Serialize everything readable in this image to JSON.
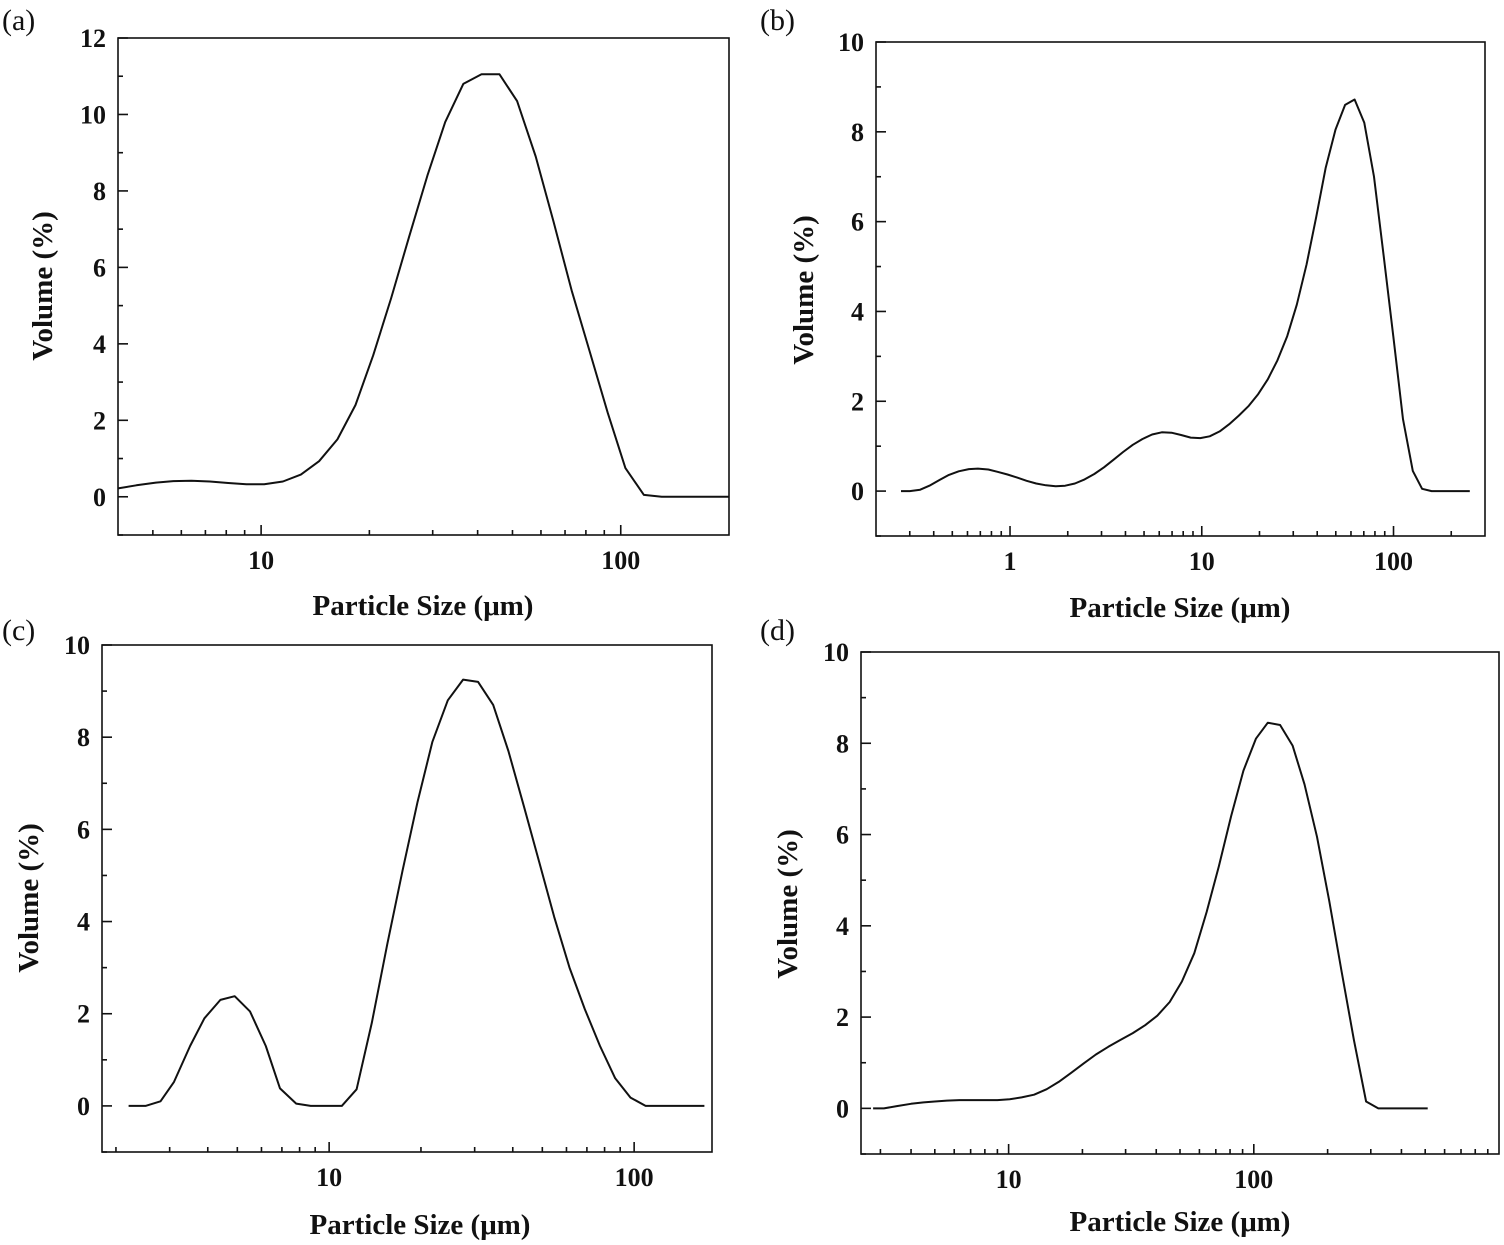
{
  "chart_data": [
    {
      "panel": "(a)",
      "type": "line",
      "xscale": "log",
      "xlim": [
        4,
        200
      ],
      "ylim": [
        -1,
        12
      ],
      "xticks": [
        10,
        100
      ],
      "xtick_labels": [
        "10",
        "100"
      ],
      "yticks": [
        0,
        2,
        4,
        6,
        8,
        10,
        12
      ],
      "ytick_labels": [
        "0",
        "2",
        "4",
        "6",
        "8",
        "10",
        "12"
      ],
      "xlabel": "Particle Size (μm)",
      "ylabel": "Volume (%)",
      "series": [
        {
          "name": "a",
          "x": [
            4,
            4.5,
            5.1,
            5.7,
            6.4,
            7.2,
            8.1,
            9.1,
            10.2,
            11.5,
            12.9,
            14.5,
            16.3,
            18.3,
            20.5,
            23.0,
            25.8,
            29.0,
            32.5,
            36.5,
            41.0,
            46.0,
            51.5,
            58.0,
            65.0,
            73.0,
            82.0,
            92.0,
            103.0,
            116.0,
            130.0,
            146.0,
            164.0,
            184.0,
            200.0
          ],
          "y": [
            0.22,
            0.3,
            0.37,
            0.41,
            0.42,
            0.4,
            0.36,
            0.33,
            0.33,
            0.4,
            0.58,
            0.93,
            1.5,
            2.4,
            3.7,
            5.2,
            6.8,
            8.4,
            9.8,
            10.8,
            11.05,
            11.05,
            10.35,
            8.9,
            7.2,
            5.4,
            3.8,
            2.2,
            0.75,
            0.05,
            0.0,
            0.0,
            0.0,
            0.0,
            0.0
          ]
        }
      ]
    },
    {
      "panel": "(b)",
      "type": "line",
      "xscale": "log",
      "xlim": [
        0.2,
        300
      ],
      "ylim": [
        -1,
        10
      ],
      "xticks": [
        1,
        10,
        100
      ],
      "xtick_labels": [
        "1",
        "10",
        "100"
      ],
      "yticks": [
        0,
        2,
        4,
        6,
        8,
        10
      ],
      "ytick_labels": [
        "0",
        "2",
        "4",
        "6",
        "8",
        "10"
      ],
      "xlabel": "Particle Size (μm)",
      "ylabel": "Volume (%)",
      "series": [
        {
          "name": "b",
          "x": [
            0.27,
            0.3,
            0.34,
            0.38,
            0.43,
            0.48,
            0.54,
            0.61,
            0.68,
            0.77,
            0.86,
            0.97,
            1.09,
            1.22,
            1.37,
            1.54,
            1.73,
            1.94,
            2.18,
            2.45,
            2.75,
            3.09,
            3.47,
            3.89,
            4.37,
            4.91,
            5.51,
            6.19,
            6.95,
            7.8,
            8.76,
            9.83,
            11.0,
            12.4,
            13.9,
            15.6,
            17.6,
            19.7,
            22.1,
            24.8,
            27.9,
            31.3,
            35.2,
            39.5,
            44.3,
            49.8,
            55.9,
            62.7,
            70.4,
            79.1,
            88.8,
            99.7,
            112,
            126,
            141,
            158,
            178,
            200,
            224,
            250
          ],
          "y": [
            0.0,
            0.0,
            0.03,
            0.12,
            0.25,
            0.36,
            0.44,
            0.49,
            0.5,
            0.48,
            0.43,
            0.37,
            0.3,
            0.23,
            0.17,
            0.13,
            0.11,
            0.12,
            0.17,
            0.26,
            0.38,
            0.53,
            0.7,
            0.87,
            1.03,
            1.16,
            1.26,
            1.31,
            1.3,
            1.25,
            1.19,
            1.18,
            1.22,
            1.33,
            1.49,
            1.68,
            1.9,
            2.16,
            2.49,
            2.91,
            3.45,
            4.15,
            5.05,
            6.1,
            7.2,
            8.05,
            8.6,
            8.72,
            8.2,
            7.0,
            5.25,
            3.45,
            1.6,
            0.45,
            0.05,
            0.0,
            0.0,
            0.0,
            0.0,
            0.0
          ]
        }
      ]
    },
    {
      "panel": "(c)",
      "type": "line",
      "xscale": "log",
      "xlim": [
        1.8,
        180
      ],
      "ylim": [
        -1,
        10
      ],
      "xticks": [
        10,
        100
      ],
      "xtick_labels": [
        "10",
        "100"
      ],
      "yticks": [
        0,
        2,
        4,
        6,
        8,
        10
      ],
      "ytick_labels": [
        "0",
        "2",
        "4",
        "6",
        "8",
        "10"
      ],
      "xlabel": "Particle Size (μm)",
      "ylabel": "Volume (%)",
      "series": [
        {
          "name": "c",
          "x": [
            2.2,
            2.5,
            2.8,
            3.1,
            3.5,
            3.9,
            4.4,
            4.9,
            5.5,
            6.2,
            6.9,
            7.8,
            8.7,
            9.8,
            11.0,
            12.3,
            13.8,
            15.5,
            17.4,
            19.5,
            21.8,
            24.5,
            27.5,
            30.8,
            34.5,
            38.7,
            43.5,
            48.8,
            54.7,
            61.4,
            68.9,
            77.3,
            86.7,
            97.3,
            109,
            122,
            137,
            154,
            170
          ],
          "y": [
            0.0,
            0.0,
            0.1,
            0.52,
            1.3,
            1.9,
            2.3,
            2.38,
            2.05,
            1.3,
            0.38,
            0.05,
            0.0,
            0.0,
            0.0,
            0.36,
            1.8,
            3.5,
            5.1,
            6.6,
            7.9,
            8.8,
            9.25,
            9.2,
            8.7,
            7.7,
            6.5,
            5.3,
            4.1,
            3.0,
            2.1,
            1.3,
            0.6,
            0.18,
            0.0,
            0.0,
            0.0,
            0.0,
            0.0
          ]
        }
      ]
    },
    {
      "panel": "(d)",
      "type": "line",
      "xscale": "log",
      "xlim": [
        2.5,
        1000
      ],
      "ylim": [
        -1,
        10
      ],
      "xticks": [
        10,
        100
      ],
      "xtick_labels": [
        "10",
        "100"
      ],
      "yticks": [
        0,
        2,
        4,
        6,
        8,
        10
      ],
      "ytick_labels": [
        "0",
        "2",
        "4",
        "6",
        "8",
        "10"
      ],
      "xlabel": "Particle Size (μm)",
      "ylabel": "Volume (%)",
      "series": [
        {
          "name": "d",
          "x": [
            2.8,
            3.1,
            3.5,
            4.0,
            4.5,
            5.0,
            5.6,
            6.3,
            7.1,
            8.0,
            9.0,
            10.1,
            11.3,
            12.7,
            14.3,
            16.0,
            18.0,
            20.2,
            22.7,
            25.5,
            28.6,
            32.1,
            36.0,
            40.4,
            45.4,
            50.9,
            57.2,
            64.2,
            72.0,
            80.8,
            90.7,
            102,
            114,
            128,
            144,
            161,
            181,
            203,
            228,
            256,
            287,
            322,
            362,
            406,
            456,
            512
          ],
          "y": [
            0.0,
            0.0,
            0.05,
            0.1,
            0.13,
            0.15,
            0.17,
            0.18,
            0.18,
            0.18,
            0.18,
            0.2,
            0.24,
            0.3,
            0.42,
            0.58,
            0.78,
            0.98,
            1.18,
            1.35,
            1.5,
            1.65,
            1.82,
            2.03,
            2.33,
            2.78,
            3.4,
            4.3,
            5.3,
            6.4,
            7.4,
            8.1,
            8.45,
            8.4,
            7.95,
            7.1,
            5.95,
            4.55,
            3.0,
            1.5,
            0.15,
            0.0,
            0.0,
            0.0,
            0.0,
            0.0
          ]
        }
      ]
    }
  ]
}
